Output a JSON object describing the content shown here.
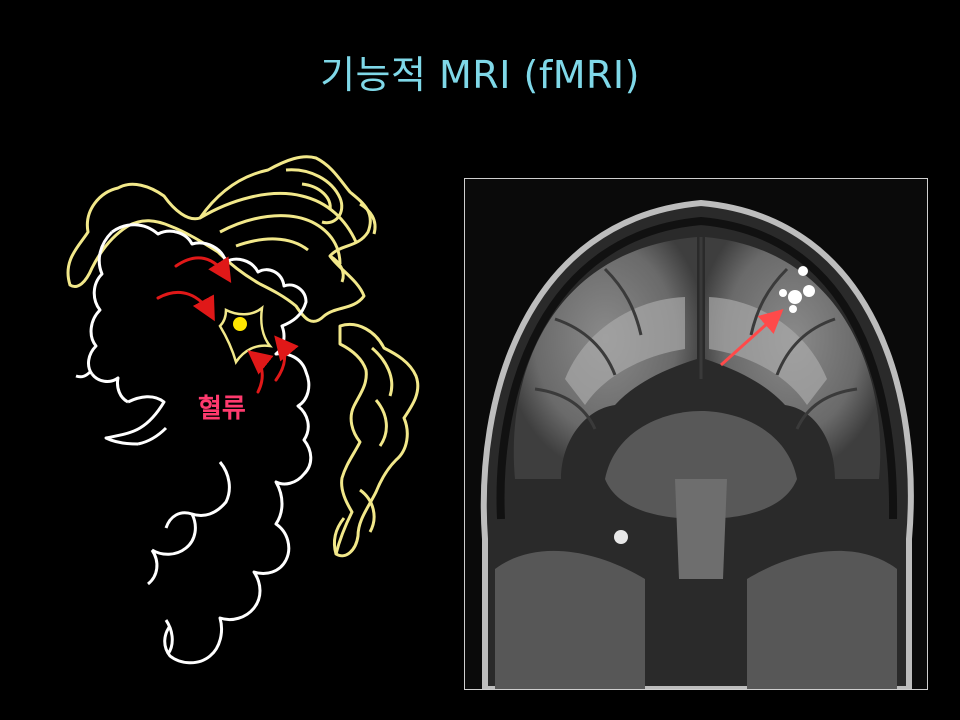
{
  "slide": {
    "title": "기능적 MRI (fMRI)",
    "title_color": "#7fd8e8"
  },
  "diagram": {
    "label": "혈류",
    "label_color": "#ff3a6e",
    "neuron_outline_color": "#ffffff",
    "glia_outline_color": "#f2e88a",
    "arrow_color": "#e01818",
    "cell_body_color": "#ffe600"
  },
  "mri": {
    "activation_color": "#ffffff",
    "arrow_color": "#ff4a4a"
  }
}
